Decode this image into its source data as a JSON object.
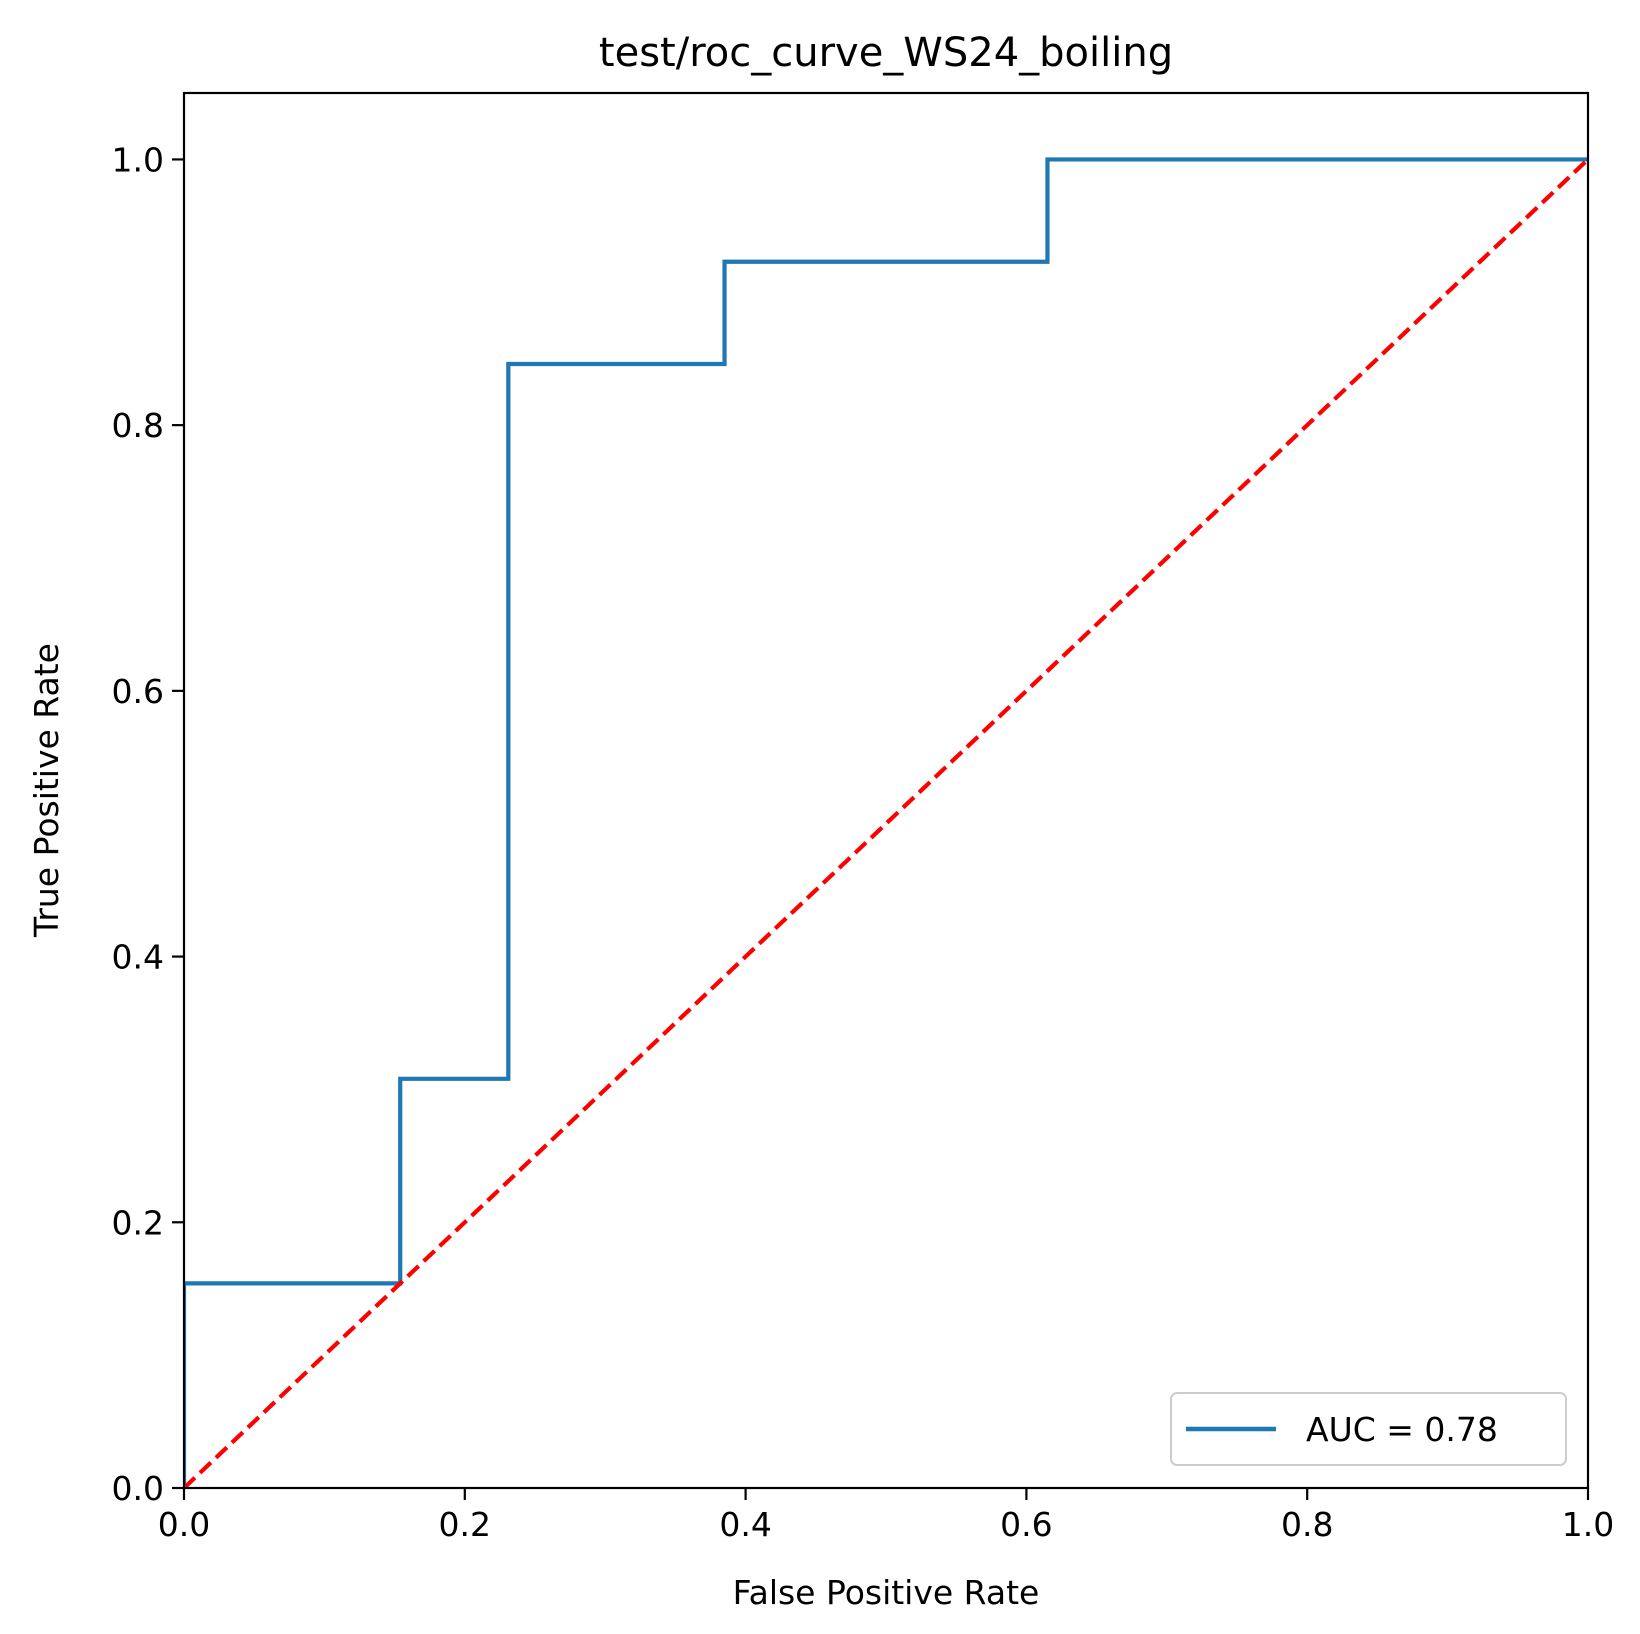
{
  "chart_data": {
    "type": "line",
    "title": "test/roc_curve_WS24_boiling",
    "xlabel": "False Positive Rate",
    "ylabel": "True Positive Rate",
    "xlim": [
      0.0,
      1.0
    ],
    "ylim": [
      0.0,
      1.05
    ],
    "x_ticks": [
      0.0,
      0.2,
      0.4,
      0.6,
      0.8,
      1.0
    ],
    "y_ticks": [
      0.0,
      0.2,
      0.4,
      0.6,
      0.8,
      1.0
    ],
    "x_tick_labels": [
      "0.0",
      "0.2",
      "0.4",
      "0.6",
      "0.8",
      "1.0"
    ],
    "y_tick_labels": [
      "0.0",
      "0.2",
      "0.4",
      "0.6",
      "0.8",
      "1.0"
    ],
    "grid": false,
    "legend_position": "lower-right",
    "series": [
      {
        "name": "AUC = 0.78",
        "color": "#1f77b4",
        "style": "solid",
        "x": [
          0.0,
          0.0,
          0.154,
          0.154,
          0.231,
          0.231,
          0.385,
          0.385,
          0.615,
          0.615,
          1.0
        ],
        "y": [
          0.0,
          0.154,
          0.154,
          0.308,
          0.308,
          0.846,
          0.846,
          0.923,
          0.923,
          1.0,
          1.0
        ]
      },
      {
        "color": "#ff0000",
        "style": "dashed",
        "x": [
          0.0,
          1.0
        ],
        "y": [
          0.0,
          1.0
        ]
      }
    ]
  }
}
